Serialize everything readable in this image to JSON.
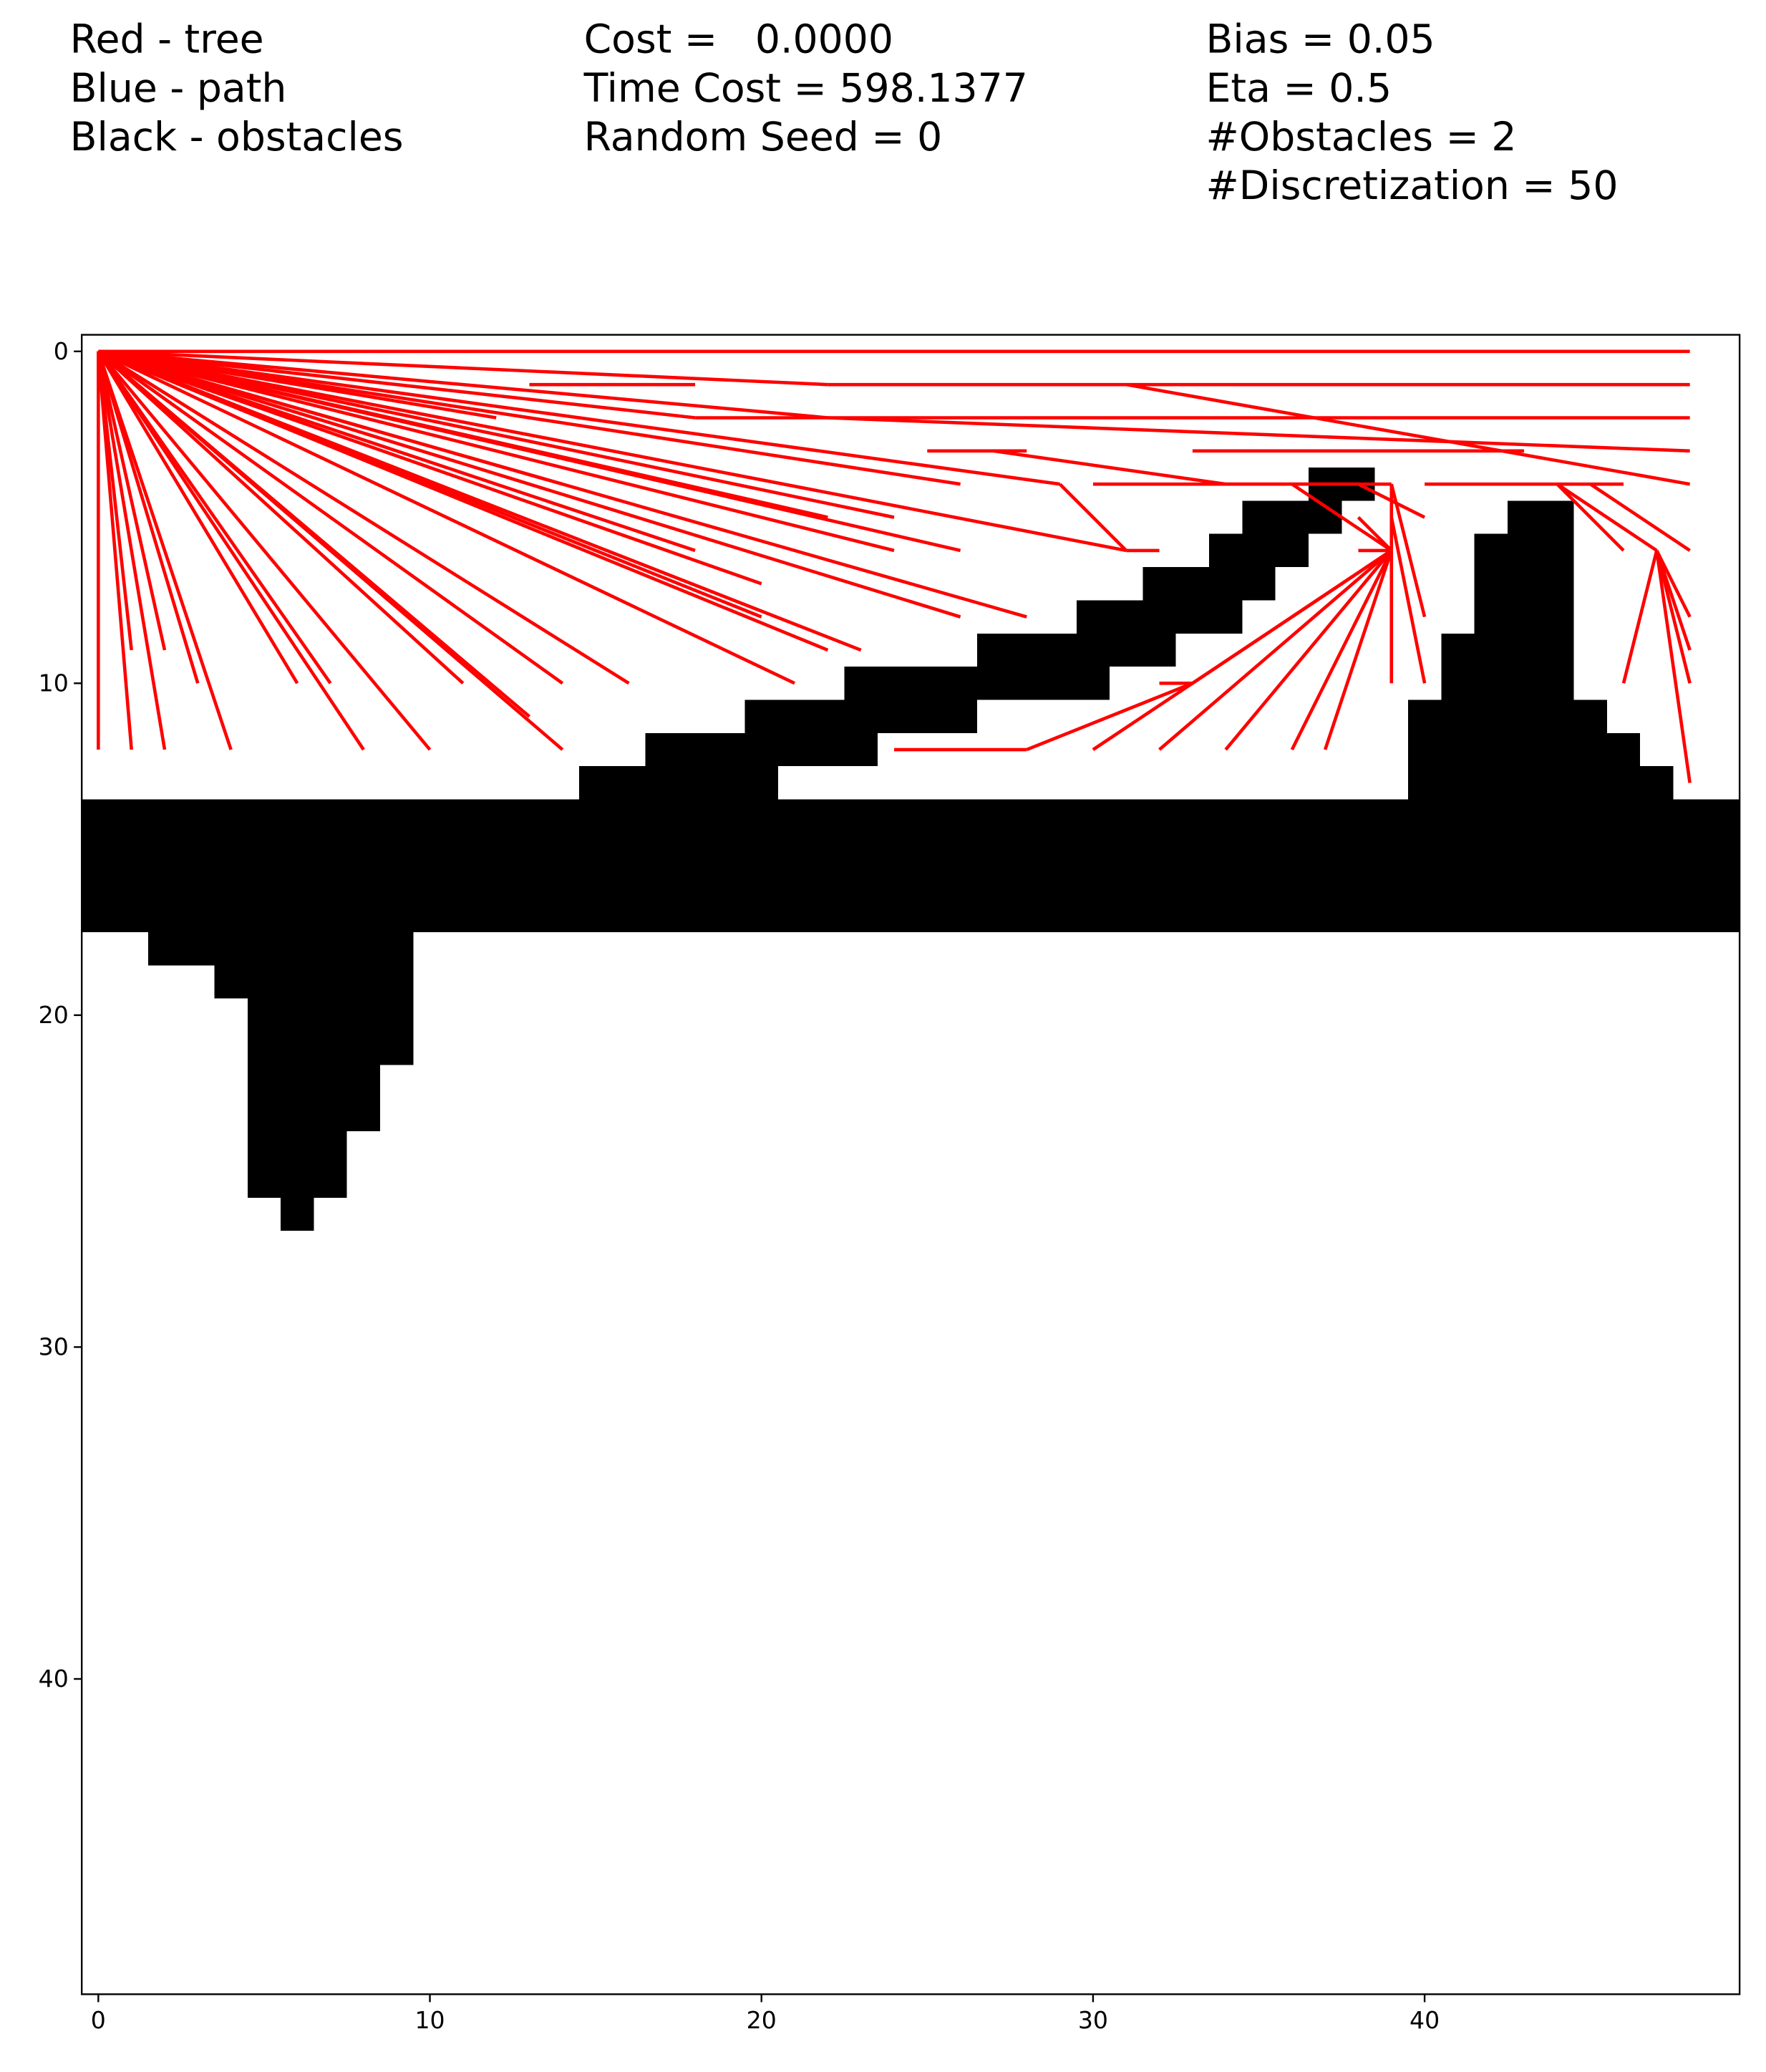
{
  "chart_data": {
    "type": "rrt-grid",
    "annotations": [
      [
        "Red - tree",
        "Blue - path",
        "Black - obstacles"
      ],
      [
        "Cost =   0.0000",
        "Time Cost = 598.1377",
        "Random Seed = 0"
      ],
      [
        "Bias = 0.05",
        "Eta = 0.5",
        "#Obstacles = 2",
        "#Discretization = 50"
      ]
    ],
    "xlim": [
      -0.5,
      49.5
    ],
    "ylim": [
      49.5,
      -0.5
    ],
    "xticks": [
      0,
      10,
      20,
      30,
      40
    ],
    "yticks": [
      0,
      10,
      20,
      30,
      40
    ],
    "obstacle_color": "#000000",
    "tree_color": "#ff0000",
    "obstacle_cells": [
      [
        4,
        37,
        38
      ],
      [
        5,
        35,
        37
      ],
      [
        5,
        43,
        44
      ],
      [
        6,
        34,
        36
      ],
      [
        6,
        42,
        44
      ],
      [
        7,
        32,
        35
      ],
      [
        7,
        42,
        44
      ],
      [
        8,
        30,
        34
      ],
      [
        8,
        42,
        44
      ],
      [
        9,
        27,
        32
      ],
      [
        9,
        41,
        44
      ],
      [
        10,
        23,
        30
      ],
      [
        10,
        41,
        44
      ],
      [
        11,
        20,
        26
      ],
      [
        11,
        40,
        45
      ],
      [
        12,
        17,
        23
      ],
      [
        12,
        40,
        46
      ],
      [
        13,
        15,
        20
      ],
      [
        13,
        40,
        47
      ],
      [
        14,
        0,
        49
      ],
      [
        15,
        0,
        49
      ],
      [
        16,
        0,
        49
      ],
      [
        17,
        0,
        49
      ],
      [
        18,
        2,
        9
      ],
      [
        19,
        4,
        9
      ],
      [
        20,
        5,
        9
      ],
      [
        21,
        5,
        9
      ],
      [
        22,
        5,
        8
      ],
      [
        23,
        5,
        8
      ],
      [
        24,
        5,
        7
      ],
      [
        25,
        5,
        7
      ],
      [
        26,
        6,
        6
      ]
    ],
    "edges": [
      [
        0,
        0,
        0,
        12
      ],
      [
        0,
        0,
        1,
        12
      ],
      [
        0,
        0,
        2,
        12
      ],
      [
        0,
        0,
        4,
        12
      ],
      [
        0,
        0,
        8,
        12
      ],
      [
        0,
        0,
        10,
        12
      ],
      [
        0,
        0,
        14,
        12
      ],
      [
        0,
        0,
        1,
        9
      ],
      [
        0,
        0,
        2,
        9
      ],
      [
        0,
        0,
        3,
        10
      ],
      [
        0,
        0,
        6,
        10
      ],
      [
        0,
        0,
        7,
        10
      ],
      [
        0,
        0,
        11,
        10
      ],
      [
        0,
        0,
        14,
        10
      ],
      [
        0,
        0,
        13,
        11
      ],
      [
        0,
        0,
        16,
        10
      ],
      [
        0,
        0,
        20,
        8
      ],
      [
        0,
        0,
        21,
        10
      ],
      [
        0,
        0,
        22,
        9
      ],
      [
        0,
        0,
        23,
        9
      ],
      [
        0,
        0,
        26,
        8
      ],
      [
        0,
        0,
        28,
        8
      ],
      [
        0,
        0,
        24,
        6
      ],
      [
        0,
        0,
        26,
        6
      ],
      [
        0,
        0,
        20,
        7
      ],
      [
        0,
        0,
        18,
        6
      ],
      [
        0,
        0,
        22,
        5
      ],
      [
        0,
        0,
        24,
        5
      ],
      [
        0,
        0,
        14,
        4
      ],
      [
        0,
        0,
        12,
        2
      ],
      [
        0,
        0,
        18,
        2
      ],
      [
        0,
        0,
        22,
        2
      ],
      [
        0,
        0,
        26,
        4
      ],
      [
        0,
        0,
        29,
        4
      ],
      [
        0,
        0,
        31,
        6
      ],
      [
        0,
        0,
        22,
        1
      ],
      [
        0,
        0,
        13,
        0
      ],
      [
        13,
        0,
        48,
        0
      ],
      [
        22,
        1,
        48,
        1
      ],
      [
        13,
        1,
        18,
        1
      ],
      [
        18,
        2,
        48,
        2
      ],
      [
        31,
        1,
        48,
        4
      ],
      [
        22,
        2,
        48,
        3
      ],
      [
        27,
        3,
        34,
        4
      ],
      [
        33,
        3,
        43,
        3
      ],
      [
        25,
        3,
        28,
        3
      ],
      [
        30,
        4,
        38,
        4
      ],
      [
        36,
        4,
        39,
        6
      ],
      [
        34,
        4,
        39,
        4
      ],
      [
        40,
        4,
        46,
        4
      ],
      [
        31,
        6,
        32,
        6
      ],
      [
        38,
        6,
        39,
        6
      ],
      [
        29,
        4,
        31,
        6
      ],
      [
        39,
        6,
        30,
        12
      ],
      [
        39,
        6,
        32,
        12
      ],
      [
        39,
        6,
        33,
        10
      ],
      [
        39,
        6,
        34,
        12
      ],
      [
        39,
        6,
        36,
        12
      ],
      [
        39,
        6,
        37,
        12
      ],
      [
        39,
        6,
        36,
        8
      ],
      [
        39,
        6,
        39,
        10
      ],
      [
        39,
        6,
        38,
        5
      ],
      [
        39,
        6,
        39,
        4
      ],
      [
        38,
        4,
        40,
        5
      ],
      [
        39,
        4,
        40,
        8
      ],
      [
        39,
        5,
        40,
        10
      ],
      [
        28,
        12,
        24,
        12
      ],
      [
        33,
        10,
        28,
        12
      ],
      [
        32,
        10,
        33,
        10
      ],
      [
        44,
        4,
        47,
        6
      ],
      [
        45,
        4,
        48,
        6
      ],
      [
        47,
        6,
        46,
        10
      ],
      [
        47,
        6,
        48,
        8
      ],
      [
        47,
        6,
        48,
        9
      ],
      [
        47,
        6,
        48,
        10
      ],
      [
        47,
        6,
        48,
        13
      ],
      [
        44,
        4,
        46,
        6
      ]
    ]
  }
}
